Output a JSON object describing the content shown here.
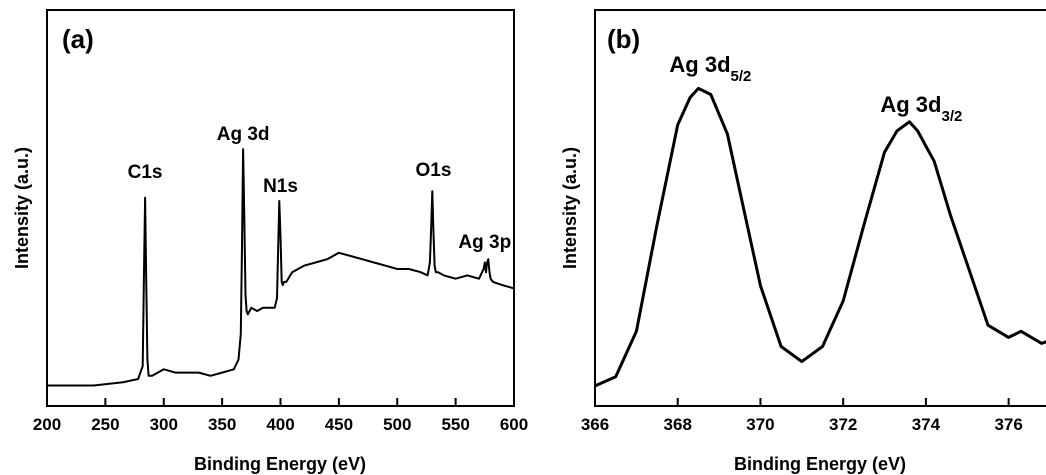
{
  "chart_data": [
    {
      "panel": "(a)",
      "type": "line",
      "xlabel": "Binding Energy (eV)",
      "ylabel": "Intensity (a.u.)",
      "xlim": [
        200,
        600
      ],
      "xticks": [
        200,
        250,
        300,
        350,
        400,
        450,
        500,
        550,
        600
      ],
      "y_ticks_shown": false,
      "grid": false,
      "x": [
        200,
        240,
        265,
        278,
        282,
        283,
        284,
        285,
        286,
        287,
        290,
        300,
        310,
        320,
        330,
        340,
        350,
        360,
        364,
        366,
        367,
        368,
        369,
        370,
        371,
        372,
        375,
        380,
        385,
        390,
        395,
        397,
        398,
        399,
        400,
        401,
        402,
        403,
        405,
        410,
        420,
        430,
        440,
        450,
        460,
        470,
        480,
        490,
        500,
        510,
        520,
        526,
        528,
        529,
        530,
        531,
        532,
        533,
        535,
        540,
        550,
        560,
        570,
        574,
        575,
        576,
        577,
        578,
        579,
        580,
        582,
        590,
        600
      ],
      "y": [
        2,
        2,
        3,
        4,
        8,
        35,
        60,
        35,
        10,
        5,
        5,
        7,
        6,
        6,
        6,
        5,
        6,
        7,
        10,
        18,
        45,
        75,
        54,
        30,
        25,
        24,
        26,
        25,
        26,
        26,
        26,
        29,
        45,
        59,
        48,
        34,
        33,
        34,
        34,
        37,
        39,
        40,
        41,
        43,
        42,
        41,
        40,
        39,
        38,
        38,
        37,
        36,
        40,
        50,
        62,
        50,
        39,
        37,
        37,
        36,
        35,
        36,
        35,
        38,
        40,
        37,
        40,
        41,
        37,
        35,
        34,
        33,
        32
      ],
      "annotations": [
        {
          "text": "C1s",
          "x": 284
        },
        {
          "text": "Ag 3d",
          "x": 368
        },
        {
          "text": "N1s",
          "x": 400
        },
        {
          "text": "O1s",
          "x": 531
        },
        {
          "text": "Ag 3p",
          "x": 575
        }
      ]
    },
    {
      "panel": "(b)",
      "type": "line",
      "xlabel": "Binding Energy (eV)",
      "ylabel": "Intensity (a.u.)",
      "xlim": [
        366,
        377
      ],
      "xticks": [
        366,
        368,
        370,
        372,
        374,
        376
      ],
      "y_ticks_shown": false,
      "grid": false,
      "x": [
        366,
        366.5,
        367,
        367.5,
        368,
        368.3,
        368.5,
        368.8,
        369.2,
        369.6,
        370,
        370.5,
        371,
        371.5,
        372,
        372.5,
        373,
        373.3,
        373.6,
        373.8,
        374.2,
        374.6,
        375,
        375.5,
        376,
        376.3,
        376.8,
        377
      ],
      "y": [
        2,
        5,
        20,
        55,
        88,
        97,
        100,
        98,
        85,
        60,
        35,
        15,
        10,
        15,
        30,
        55,
        79,
        86,
        89,
        86,
        76,
        58,
        42,
        22,
        18,
        20,
        16,
        17
      ],
      "annotations": [
        {
          "text": "Ag 3d",
          "sub": "5/2",
          "x": 368.5
        },
        {
          "text": "Ag 3d",
          "sub": "3/2",
          "x": 373.6
        }
      ]
    }
  ]
}
